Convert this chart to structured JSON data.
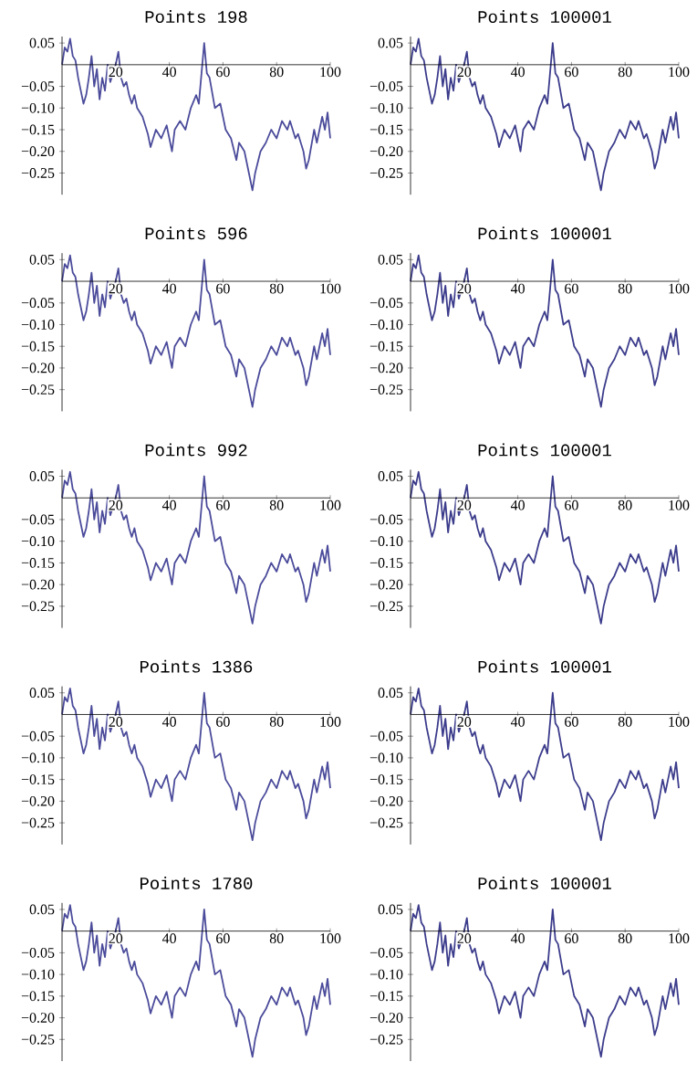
{
  "chart_data": [
    {
      "type": "line",
      "title": "Points 198",
      "color": "#4b4b9b",
      "xlim": [
        0,
        100
      ],
      "ylim": [
        -0.3,
        0.065
      ],
      "xticks": [
        20,
        40,
        60,
        80,
        100
      ],
      "yticks": [
        {
          "value": 0.05,
          "label": "0.05"
        },
        {
          "value": -0.05,
          "label": "−0.05"
        },
        {
          "value": -0.1,
          "label": "−0.10"
        },
        {
          "value": -0.15,
          "label": "−0.15"
        },
        {
          "value": -0.2,
          "label": "−0.20"
        },
        {
          "value": -0.25,
          "label": "−0.25"
        }
      ],
      "x": [
        0,
        1,
        2,
        3,
        4,
        5,
        6,
        7,
        8,
        9,
        10,
        11,
        12,
        13,
        14,
        15,
        16,
        17,
        18,
        19,
        20,
        21,
        22,
        23,
        24,
        25,
        26,
        27,
        28,
        30,
        32,
        33,
        35,
        37,
        39,
        41,
        42,
        44,
        46,
        48,
        50,
        51,
        53,
        54,
        55,
        57,
        59,
        61,
        63,
        65,
        66,
        68,
        70,
        71,
        72,
        74,
        76,
        78,
        80,
        82,
        84,
        85,
        87,
        88,
        90,
        91,
        92,
        94,
        95,
        97,
        98,
        99,
        100
      ],
      "values": [
        0,
        0.04,
        0.03,
        0.06,
        0.02,
        0.01,
        -0.03,
        -0.06,
        -0.09,
        -0.07,
        -0.03,
        0.02,
        -0.05,
        -0.01,
        -0.08,
        -0.03,
        -0.06,
        0,
        -0.04,
        -0.02,
        0,
        0.03,
        -0.03,
        -0.05,
        -0.04,
        -0.07,
        -0.09,
        -0.07,
        -0.1,
        -0.12,
        -0.16,
        -0.19,
        -0.15,
        -0.17,
        -0.14,
        -0.2,
        -0.15,
        -0.13,
        -0.15,
        -0.1,
        -0.07,
        -0.09,
        0.05,
        -0.02,
        -0.03,
        -0.1,
        -0.09,
        -0.15,
        -0.17,
        -0.22,
        -0.18,
        -0.2,
        -0.26,
        -0.29,
        -0.25,
        -0.2,
        -0.18,
        -0.15,
        -0.17,
        -0.13,
        -0.15,
        -0.13,
        -0.17,
        -0.16,
        -0.2,
        -0.24,
        -0.22,
        -0.15,
        -0.18,
        -0.12,
        -0.15,
        -0.11,
        -0.17
      ]
    },
    {
      "type": "line",
      "title": "Points 100001",
      "color": "#3c3c8c",
      "xlim": [
        0,
        100
      ],
      "ylim": [
        -0.3,
        0.065
      ],
      "xticks": [
        20,
        40,
        60,
        80,
        100
      ],
      "yticks": [
        {
          "value": 0.05,
          "label": "0.05"
        },
        {
          "value": -0.05,
          "label": "−0.05"
        },
        {
          "value": -0.1,
          "label": "−0.10"
        },
        {
          "value": -0.15,
          "label": "−0.15"
        },
        {
          "value": -0.2,
          "label": "−0.20"
        },
        {
          "value": -0.25,
          "label": "−0.25"
        }
      ],
      "x": [
        0,
        1,
        2,
        3,
        4,
        5,
        6,
        7,
        8,
        9,
        10,
        11,
        12,
        13,
        14,
        15,
        16,
        17,
        18,
        19,
        20,
        21,
        22,
        23,
        24,
        25,
        26,
        27,
        28,
        30,
        32,
        33,
        35,
        37,
        39,
        41,
        42,
        44,
        46,
        48,
        50,
        51,
        53,
        54,
        55,
        57,
        59,
        61,
        63,
        65,
        66,
        68,
        70,
        71,
        72,
        74,
        76,
        78,
        80,
        82,
        84,
        85,
        87,
        88,
        90,
        91,
        92,
        94,
        95,
        97,
        98,
        99,
        100
      ],
      "values": [
        0,
        0.04,
        0.03,
        0.06,
        0.02,
        0.01,
        -0.03,
        -0.06,
        -0.09,
        -0.07,
        -0.03,
        0.02,
        -0.05,
        -0.01,
        -0.08,
        -0.03,
        -0.06,
        0,
        -0.04,
        -0.02,
        0,
        0.03,
        -0.03,
        -0.05,
        -0.04,
        -0.07,
        -0.09,
        -0.07,
        -0.1,
        -0.12,
        -0.16,
        -0.19,
        -0.15,
        -0.17,
        -0.14,
        -0.2,
        -0.15,
        -0.13,
        -0.15,
        -0.1,
        -0.07,
        -0.09,
        0.05,
        -0.02,
        -0.03,
        -0.1,
        -0.09,
        -0.15,
        -0.17,
        -0.22,
        -0.18,
        -0.2,
        -0.26,
        -0.29,
        -0.25,
        -0.2,
        -0.18,
        -0.15,
        -0.17,
        -0.13,
        -0.15,
        -0.13,
        -0.17,
        -0.16,
        -0.2,
        -0.24,
        -0.22,
        -0.15,
        -0.18,
        -0.12,
        -0.15,
        -0.11,
        -0.17
      ]
    },
    {
      "type": "line",
      "title": "Points 596",
      "color": "#4b4b9b",
      "xlim": [
        0,
        100
      ],
      "ylim": [
        -0.3,
        0.065
      ],
      "xticks": [
        20,
        40,
        60,
        80,
        100
      ],
      "yticks": [
        {
          "value": 0.05,
          "label": "0.05"
        },
        {
          "value": -0.05,
          "label": "−0.05"
        },
        {
          "value": -0.1,
          "label": "−0.10"
        },
        {
          "value": -0.15,
          "label": "−0.15"
        },
        {
          "value": -0.2,
          "label": "−0.20"
        },
        {
          "value": -0.25,
          "label": "−0.25"
        }
      ],
      "x": [
        0,
        1,
        2,
        3,
        4,
        5,
        6,
        7,
        8,
        9,
        10,
        11,
        12,
        13,
        14,
        15,
        16,
        17,
        18,
        19,
        20,
        21,
        22,
        23,
        24,
        25,
        26,
        27,
        28,
        30,
        32,
        33,
        35,
        37,
        39,
        41,
        42,
        44,
        46,
        48,
        50,
        51,
        53,
        54,
        55,
        57,
        59,
        61,
        63,
        65,
        66,
        68,
        70,
        71,
        72,
        74,
        76,
        78,
        80,
        82,
        84,
        85,
        87,
        88,
        90,
        91,
        92,
        94,
        95,
        97,
        98,
        99,
        100
      ],
      "values": [
        0,
        0.04,
        0.03,
        0.06,
        0.02,
        0.01,
        -0.03,
        -0.06,
        -0.09,
        -0.07,
        -0.03,
        0.02,
        -0.05,
        -0.01,
        -0.08,
        -0.03,
        -0.06,
        0,
        -0.04,
        -0.02,
        0,
        0.03,
        -0.03,
        -0.05,
        -0.04,
        -0.07,
        -0.09,
        -0.07,
        -0.1,
        -0.12,
        -0.16,
        -0.19,
        -0.15,
        -0.17,
        -0.14,
        -0.2,
        -0.15,
        -0.13,
        -0.15,
        -0.1,
        -0.07,
        -0.09,
        0.05,
        -0.02,
        -0.03,
        -0.1,
        -0.09,
        -0.15,
        -0.17,
        -0.22,
        -0.18,
        -0.2,
        -0.26,
        -0.29,
        -0.25,
        -0.2,
        -0.18,
        -0.15,
        -0.17,
        -0.13,
        -0.15,
        -0.13,
        -0.17,
        -0.16,
        -0.2,
        -0.24,
        -0.22,
        -0.15,
        -0.18,
        -0.12,
        -0.15,
        -0.11,
        -0.17
      ]
    },
    {
      "type": "line",
      "title": "Points 100001",
      "color": "#3c3c8c",
      "xlim": [
        0,
        100
      ],
      "ylim": [
        -0.3,
        0.065
      ],
      "xticks": [
        20,
        40,
        60,
        80,
        100
      ],
      "yticks": [
        {
          "value": 0.05,
          "label": "0.05"
        },
        {
          "value": -0.05,
          "label": "−0.05"
        },
        {
          "value": -0.1,
          "label": "−0.10"
        },
        {
          "value": -0.15,
          "label": "−0.15"
        },
        {
          "value": -0.2,
          "label": "−0.20"
        },
        {
          "value": -0.25,
          "label": "−0.25"
        }
      ],
      "x": [
        0,
        1,
        2,
        3,
        4,
        5,
        6,
        7,
        8,
        9,
        10,
        11,
        12,
        13,
        14,
        15,
        16,
        17,
        18,
        19,
        20,
        21,
        22,
        23,
        24,
        25,
        26,
        27,
        28,
        30,
        32,
        33,
        35,
        37,
        39,
        41,
        42,
        44,
        46,
        48,
        50,
        51,
        53,
        54,
        55,
        57,
        59,
        61,
        63,
        65,
        66,
        68,
        70,
        71,
        72,
        74,
        76,
        78,
        80,
        82,
        84,
        85,
        87,
        88,
        90,
        91,
        92,
        94,
        95,
        97,
        98,
        99,
        100
      ],
      "values": [
        0,
        0.04,
        0.03,
        0.06,
        0.02,
        0.01,
        -0.03,
        -0.06,
        -0.09,
        -0.07,
        -0.03,
        0.02,
        -0.05,
        -0.01,
        -0.08,
        -0.03,
        -0.06,
        0,
        -0.04,
        -0.02,
        0,
        0.03,
        -0.03,
        -0.05,
        -0.04,
        -0.07,
        -0.09,
        -0.07,
        -0.1,
        -0.12,
        -0.16,
        -0.19,
        -0.15,
        -0.17,
        -0.14,
        -0.2,
        -0.15,
        -0.13,
        -0.15,
        -0.1,
        -0.07,
        -0.09,
        0.05,
        -0.02,
        -0.03,
        -0.1,
        -0.09,
        -0.15,
        -0.17,
        -0.22,
        -0.18,
        -0.2,
        -0.26,
        -0.29,
        -0.25,
        -0.2,
        -0.18,
        -0.15,
        -0.17,
        -0.13,
        -0.15,
        -0.13,
        -0.17,
        -0.16,
        -0.2,
        -0.24,
        -0.22,
        -0.15,
        -0.18,
        -0.12,
        -0.15,
        -0.11,
        -0.17
      ]
    },
    {
      "type": "line",
      "title": "Points 992",
      "color": "#4b4b9b",
      "xlim": [
        0,
        100
      ],
      "ylim": [
        -0.3,
        0.065
      ],
      "xticks": [
        20,
        40,
        60,
        80,
        100
      ],
      "yticks": [
        {
          "value": 0.05,
          "label": "0.05"
        },
        {
          "value": -0.05,
          "label": "−0.05"
        },
        {
          "value": -0.1,
          "label": "−0.10"
        },
        {
          "value": -0.15,
          "label": "−0.15"
        },
        {
          "value": -0.2,
          "label": "−0.20"
        },
        {
          "value": -0.25,
          "label": "−0.25"
        }
      ],
      "x": [
        0,
        1,
        2,
        3,
        4,
        5,
        6,
        7,
        8,
        9,
        10,
        11,
        12,
        13,
        14,
        15,
        16,
        17,
        18,
        19,
        20,
        21,
        22,
        23,
        24,
        25,
        26,
        27,
        28,
        30,
        32,
        33,
        35,
        37,
        39,
        41,
        42,
        44,
        46,
        48,
        50,
        51,
        53,
        54,
        55,
        57,
        59,
        61,
        63,
        65,
        66,
        68,
        70,
        71,
        72,
        74,
        76,
        78,
        80,
        82,
        84,
        85,
        87,
        88,
        90,
        91,
        92,
        94,
        95,
        97,
        98,
        99,
        100
      ],
      "values": [
        0,
        0.04,
        0.03,
        0.06,
        0.02,
        0.01,
        -0.03,
        -0.06,
        -0.09,
        -0.07,
        -0.03,
        0.02,
        -0.05,
        -0.01,
        -0.08,
        -0.03,
        -0.06,
        0,
        -0.04,
        -0.02,
        0,
        0.03,
        -0.03,
        -0.05,
        -0.04,
        -0.07,
        -0.09,
        -0.07,
        -0.1,
        -0.12,
        -0.16,
        -0.19,
        -0.15,
        -0.17,
        -0.14,
        -0.2,
        -0.15,
        -0.13,
        -0.15,
        -0.1,
        -0.07,
        -0.09,
        0.05,
        -0.02,
        -0.03,
        -0.1,
        -0.09,
        -0.15,
        -0.17,
        -0.22,
        -0.18,
        -0.2,
        -0.26,
        -0.29,
        -0.25,
        -0.2,
        -0.18,
        -0.15,
        -0.17,
        -0.13,
        -0.15,
        -0.13,
        -0.17,
        -0.16,
        -0.2,
        -0.24,
        -0.22,
        -0.15,
        -0.18,
        -0.12,
        -0.15,
        -0.11,
        -0.17
      ]
    },
    {
      "type": "line",
      "title": "Points 100001",
      "color": "#3c3c8c",
      "xlim": [
        0,
        100
      ],
      "ylim": [
        -0.3,
        0.065
      ],
      "xticks": [
        20,
        40,
        60,
        80,
        100
      ],
      "yticks": [
        {
          "value": 0.05,
          "label": "0.05"
        },
        {
          "value": -0.05,
          "label": "−0.05"
        },
        {
          "value": -0.1,
          "label": "−0.10"
        },
        {
          "value": -0.15,
          "label": "−0.15"
        },
        {
          "value": -0.2,
          "label": "−0.20"
        },
        {
          "value": -0.25,
          "label": "−0.25"
        }
      ],
      "x": [
        0,
        1,
        2,
        3,
        4,
        5,
        6,
        7,
        8,
        9,
        10,
        11,
        12,
        13,
        14,
        15,
        16,
        17,
        18,
        19,
        20,
        21,
        22,
        23,
        24,
        25,
        26,
        27,
        28,
        30,
        32,
        33,
        35,
        37,
        39,
        41,
        42,
        44,
        46,
        48,
        50,
        51,
        53,
        54,
        55,
        57,
        59,
        61,
        63,
        65,
        66,
        68,
        70,
        71,
        72,
        74,
        76,
        78,
        80,
        82,
        84,
        85,
        87,
        88,
        90,
        91,
        92,
        94,
        95,
        97,
        98,
        99,
        100
      ],
      "values": [
        0,
        0.04,
        0.03,
        0.06,
        0.02,
        0.01,
        -0.03,
        -0.06,
        -0.09,
        -0.07,
        -0.03,
        0.02,
        -0.05,
        -0.01,
        -0.08,
        -0.03,
        -0.06,
        0,
        -0.04,
        -0.02,
        0,
        0.03,
        -0.03,
        -0.05,
        -0.04,
        -0.07,
        -0.09,
        -0.07,
        -0.1,
        -0.12,
        -0.16,
        -0.19,
        -0.15,
        -0.17,
        -0.14,
        -0.2,
        -0.15,
        -0.13,
        -0.15,
        -0.1,
        -0.07,
        -0.09,
        0.05,
        -0.02,
        -0.03,
        -0.1,
        -0.09,
        -0.15,
        -0.17,
        -0.22,
        -0.18,
        -0.2,
        -0.26,
        -0.29,
        -0.25,
        -0.2,
        -0.18,
        -0.15,
        -0.17,
        -0.13,
        -0.15,
        -0.13,
        -0.17,
        -0.16,
        -0.2,
        -0.24,
        -0.22,
        -0.15,
        -0.18,
        -0.12,
        -0.15,
        -0.11,
        -0.17
      ]
    },
    {
      "type": "line",
      "title": "Points 1386",
      "color": "#4b4b9b",
      "xlim": [
        0,
        100
      ],
      "ylim": [
        -0.3,
        0.065
      ],
      "xticks": [
        20,
        40,
        60,
        80,
        100
      ],
      "yticks": [
        {
          "value": 0.05,
          "label": "0.05"
        },
        {
          "value": -0.05,
          "label": "−0.05"
        },
        {
          "value": -0.1,
          "label": "−0.10"
        },
        {
          "value": -0.15,
          "label": "−0.15"
        },
        {
          "value": -0.2,
          "label": "−0.20"
        },
        {
          "value": -0.25,
          "label": "−0.25"
        }
      ],
      "x": [
        0,
        1,
        2,
        3,
        4,
        5,
        6,
        7,
        8,
        9,
        10,
        11,
        12,
        13,
        14,
        15,
        16,
        17,
        18,
        19,
        20,
        21,
        22,
        23,
        24,
        25,
        26,
        27,
        28,
        30,
        32,
        33,
        35,
        37,
        39,
        41,
        42,
        44,
        46,
        48,
        50,
        51,
        53,
        54,
        55,
        57,
        59,
        61,
        63,
        65,
        66,
        68,
        70,
        71,
        72,
        74,
        76,
        78,
        80,
        82,
        84,
        85,
        87,
        88,
        90,
        91,
        92,
        94,
        95,
        97,
        98,
        99,
        100
      ],
      "values": [
        0,
        0.04,
        0.03,
        0.06,
        0.02,
        0.01,
        -0.03,
        -0.06,
        -0.09,
        -0.07,
        -0.03,
        0.02,
        -0.05,
        -0.01,
        -0.08,
        -0.03,
        -0.06,
        0,
        -0.04,
        -0.02,
        0,
        0.03,
        -0.03,
        -0.05,
        -0.04,
        -0.07,
        -0.09,
        -0.07,
        -0.1,
        -0.12,
        -0.16,
        -0.19,
        -0.15,
        -0.17,
        -0.14,
        -0.2,
        -0.15,
        -0.13,
        -0.15,
        -0.1,
        -0.07,
        -0.09,
        0.05,
        -0.02,
        -0.03,
        -0.1,
        -0.09,
        -0.15,
        -0.17,
        -0.22,
        -0.18,
        -0.2,
        -0.26,
        -0.29,
        -0.25,
        -0.2,
        -0.18,
        -0.15,
        -0.17,
        -0.13,
        -0.15,
        -0.13,
        -0.17,
        -0.16,
        -0.2,
        -0.24,
        -0.22,
        -0.15,
        -0.18,
        -0.12,
        -0.15,
        -0.11,
        -0.17
      ]
    },
    {
      "type": "line",
      "title": "Points 100001",
      "color": "#3c3c8c",
      "xlim": [
        0,
        100
      ],
      "ylim": [
        -0.3,
        0.065
      ],
      "xticks": [
        20,
        40,
        60,
        80,
        100
      ],
      "yticks": [
        {
          "value": 0.05,
          "label": "0.05"
        },
        {
          "value": -0.05,
          "label": "−0.05"
        },
        {
          "value": -0.1,
          "label": "−0.10"
        },
        {
          "value": -0.15,
          "label": "−0.15"
        },
        {
          "value": -0.2,
          "label": "−0.20"
        },
        {
          "value": -0.25,
          "label": "−0.25"
        }
      ],
      "x": [
        0,
        1,
        2,
        3,
        4,
        5,
        6,
        7,
        8,
        9,
        10,
        11,
        12,
        13,
        14,
        15,
        16,
        17,
        18,
        19,
        20,
        21,
        22,
        23,
        24,
        25,
        26,
        27,
        28,
        30,
        32,
        33,
        35,
        37,
        39,
        41,
        42,
        44,
        46,
        48,
        50,
        51,
        53,
        54,
        55,
        57,
        59,
        61,
        63,
        65,
        66,
        68,
        70,
        71,
        72,
        74,
        76,
        78,
        80,
        82,
        84,
        85,
        87,
        88,
        90,
        91,
        92,
        94,
        95,
        97,
        98,
        99,
        100
      ],
      "values": [
        0,
        0.04,
        0.03,
        0.06,
        0.02,
        0.01,
        -0.03,
        -0.06,
        -0.09,
        -0.07,
        -0.03,
        0.02,
        -0.05,
        -0.01,
        -0.08,
        -0.03,
        -0.06,
        0,
        -0.04,
        -0.02,
        0,
        0.03,
        -0.03,
        -0.05,
        -0.04,
        -0.07,
        -0.09,
        -0.07,
        -0.1,
        -0.12,
        -0.16,
        -0.19,
        -0.15,
        -0.17,
        -0.14,
        -0.2,
        -0.15,
        -0.13,
        -0.15,
        -0.1,
        -0.07,
        -0.09,
        0.05,
        -0.02,
        -0.03,
        -0.1,
        -0.09,
        -0.15,
        -0.17,
        -0.22,
        -0.18,
        -0.2,
        -0.26,
        -0.29,
        -0.25,
        -0.2,
        -0.18,
        -0.15,
        -0.17,
        -0.13,
        -0.15,
        -0.13,
        -0.17,
        -0.16,
        -0.2,
        -0.24,
        -0.22,
        -0.15,
        -0.18,
        -0.12,
        -0.15,
        -0.11,
        -0.17
      ]
    },
    {
      "type": "line",
      "title": "Points 1780",
      "color": "#4b4b9b",
      "xlim": [
        0,
        100
      ],
      "ylim": [
        -0.3,
        0.065
      ],
      "xticks": [
        20,
        40,
        60,
        80,
        100
      ],
      "yticks": [
        {
          "value": 0.05,
          "label": "0.05"
        },
        {
          "value": -0.05,
          "label": "−0.05"
        },
        {
          "value": -0.1,
          "label": "−0.10"
        },
        {
          "value": -0.15,
          "label": "−0.15"
        },
        {
          "value": -0.2,
          "label": "−0.20"
        },
        {
          "value": -0.25,
          "label": "−0.25"
        }
      ],
      "x": [
        0,
        1,
        2,
        3,
        4,
        5,
        6,
        7,
        8,
        9,
        10,
        11,
        12,
        13,
        14,
        15,
        16,
        17,
        18,
        19,
        20,
        21,
        22,
        23,
        24,
        25,
        26,
        27,
        28,
        30,
        32,
        33,
        35,
        37,
        39,
        41,
        42,
        44,
        46,
        48,
        50,
        51,
        53,
        54,
        55,
        57,
        59,
        61,
        63,
        65,
        66,
        68,
        70,
        71,
        72,
        74,
        76,
        78,
        80,
        82,
        84,
        85,
        87,
        88,
        90,
        91,
        92,
        94,
        95,
        97,
        98,
        99,
        100
      ],
      "values": [
        0,
        0.04,
        0.03,
        0.06,
        0.02,
        0.01,
        -0.03,
        -0.06,
        -0.09,
        -0.07,
        -0.03,
        0.02,
        -0.05,
        -0.01,
        -0.08,
        -0.03,
        -0.06,
        0,
        -0.04,
        -0.02,
        0,
        0.03,
        -0.03,
        -0.05,
        -0.04,
        -0.07,
        -0.09,
        -0.07,
        -0.1,
        -0.12,
        -0.16,
        -0.19,
        -0.15,
        -0.17,
        -0.14,
        -0.2,
        -0.15,
        -0.13,
        -0.15,
        -0.1,
        -0.07,
        -0.09,
        0.05,
        -0.02,
        -0.03,
        -0.1,
        -0.09,
        -0.15,
        -0.17,
        -0.22,
        -0.18,
        -0.2,
        -0.26,
        -0.29,
        -0.25,
        -0.2,
        -0.18,
        -0.15,
        -0.17,
        -0.13,
        -0.15,
        -0.13,
        -0.17,
        -0.16,
        -0.2,
        -0.24,
        -0.22,
        -0.15,
        -0.18,
        -0.12,
        -0.15,
        -0.11,
        -0.17
      ]
    },
    {
      "type": "line",
      "title": "Points 100001",
      "color": "#3c3c8c",
      "xlim": [
        0,
        100
      ],
      "ylim": [
        -0.3,
        0.065
      ],
      "xticks": [
        20,
        40,
        60,
        80,
        100
      ],
      "yticks": [
        {
          "value": 0.05,
          "label": "0.05"
        },
        {
          "value": -0.05,
          "label": "−0.05"
        },
        {
          "value": -0.1,
          "label": "−0.10"
        },
        {
          "value": -0.15,
          "label": "−0.15"
        },
        {
          "value": -0.2,
          "label": "−0.20"
        },
        {
          "value": -0.25,
          "label": "−0.25"
        }
      ],
      "x": [
        0,
        1,
        2,
        3,
        4,
        5,
        6,
        7,
        8,
        9,
        10,
        11,
        12,
        13,
        14,
        15,
        16,
        17,
        18,
        19,
        20,
        21,
        22,
        23,
        24,
        25,
        26,
        27,
        28,
        30,
        32,
        33,
        35,
        37,
        39,
        41,
        42,
        44,
        46,
        48,
        50,
        51,
        53,
        54,
        55,
        57,
        59,
        61,
        63,
        65,
        66,
        68,
        70,
        71,
        72,
        74,
        76,
        78,
        80,
        82,
        84,
        85,
        87,
        88,
        90,
        91,
        92,
        94,
        95,
        97,
        98,
        99,
        100
      ],
      "values": [
        0,
        0.04,
        0.03,
        0.06,
        0.02,
        0.01,
        -0.03,
        -0.06,
        -0.09,
        -0.07,
        -0.03,
        0.02,
        -0.05,
        -0.01,
        -0.08,
        -0.03,
        -0.06,
        0,
        -0.04,
        -0.02,
        0,
        0.03,
        -0.03,
        -0.05,
        -0.04,
        -0.07,
        -0.09,
        -0.07,
        -0.1,
        -0.12,
        -0.16,
        -0.19,
        -0.15,
        -0.17,
        -0.14,
        -0.2,
        -0.15,
        -0.13,
        -0.15,
        -0.1,
        -0.07,
        -0.09,
        0.05,
        -0.02,
        -0.03,
        -0.1,
        -0.09,
        -0.15,
        -0.17,
        -0.22,
        -0.18,
        -0.2,
        -0.26,
        -0.29,
        -0.25,
        -0.2,
        -0.18,
        -0.15,
        -0.17,
        -0.13,
        -0.15,
        -0.13,
        -0.17,
        -0.16,
        -0.2,
        -0.24,
        -0.22,
        -0.15,
        -0.18,
        -0.12,
        -0.15,
        -0.11,
        -0.17
      ]
    }
  ]
}
